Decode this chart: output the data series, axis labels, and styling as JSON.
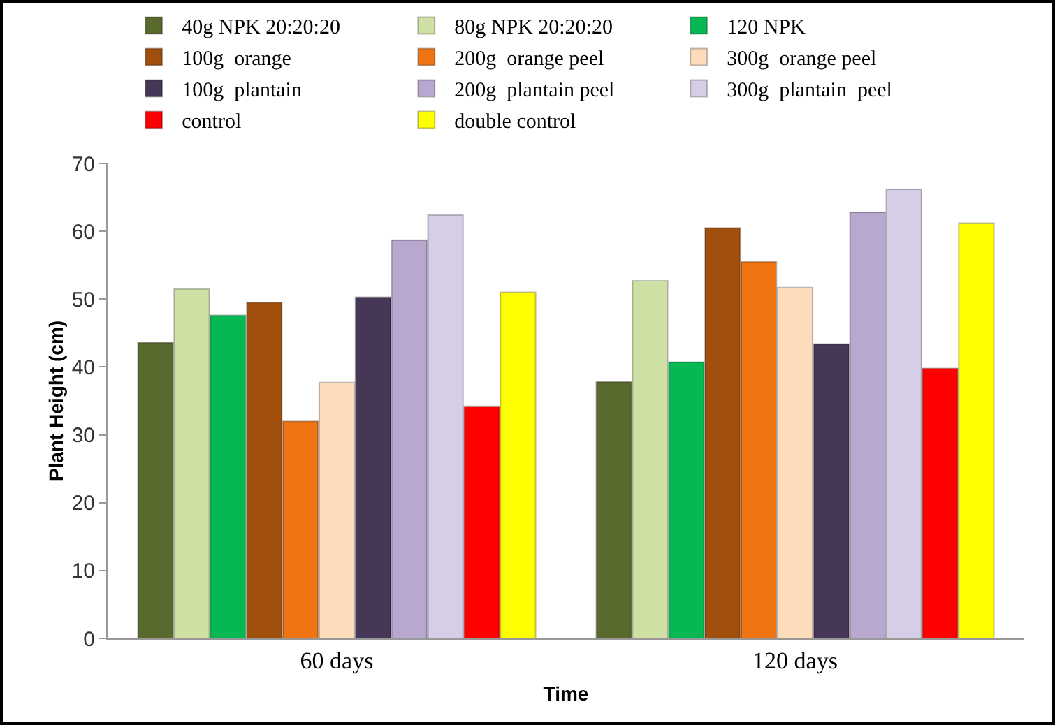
{
  "chart_data": {
    "type": "bar",
    "xlabel": "Time",
    "ylabel": "Plant Height (cm)",
    "categories": [
      "60 days",
      "120 days"
    ],
    "series": [
      {
        "name": "40g NPK 20:20:20",
        "color": "#596a2e",
        "values": [
          43.6,
          37.8
        ]
      },
      {
        "name": "80g NPK 20:20:20",
        "color": "#cfe0a4",
        "values": [
          51.5,
          52.7
        ]
      },
      {
        "name": "120 NPK",
        "color": "#05b852",
        "values": [
          47.6,
          40.7
        ]
      },
      {
        "name": "100g  orange",
        "color": "#a14f0c",
        "values": [
          49.5,
          60.5
        ]
      },
      {
        "name": "200g  orange peel",
        "color": "#f07412",
        "values": [
          32.0,
          55.5
        ]
      },
      {
        "name": "300g  orange peel",
        "color": "#fddcbb",
        "values": [
          37.7,
          51.7
        ]
      },
      {
        "name": "100g  plantain",
        "color": "#453755",
        "values": [
          50.3,
          43.4
        ]
      },
      {
        "name": "200g  plantain peel",
        "color": "#b8a8cf",
        "values": [
          58.7,
          62.8
        ]
      },
      {
        "name": "300g  plantain  peel",
        "color": "#d6cee6",
        "values": [
          62.4,
          66.2
        ]
      },
      {
        "name": "control",
        "color": "#ff0000",
        "values": [
          34.2,
          39.8
        ]
      },
      {
        "name": "double control",
        "color": "#ffff00",
        "values": [
          51.0,
          61.2
        ]
      }
    ],
    "ylim": [
      0,
      70
    ],
    "yticks": [
      0,
      10,
      20,
      30,
      40,
      50,
      60,
      70
    ],
    "grid": false,
    "legend": "top"
  }
}
